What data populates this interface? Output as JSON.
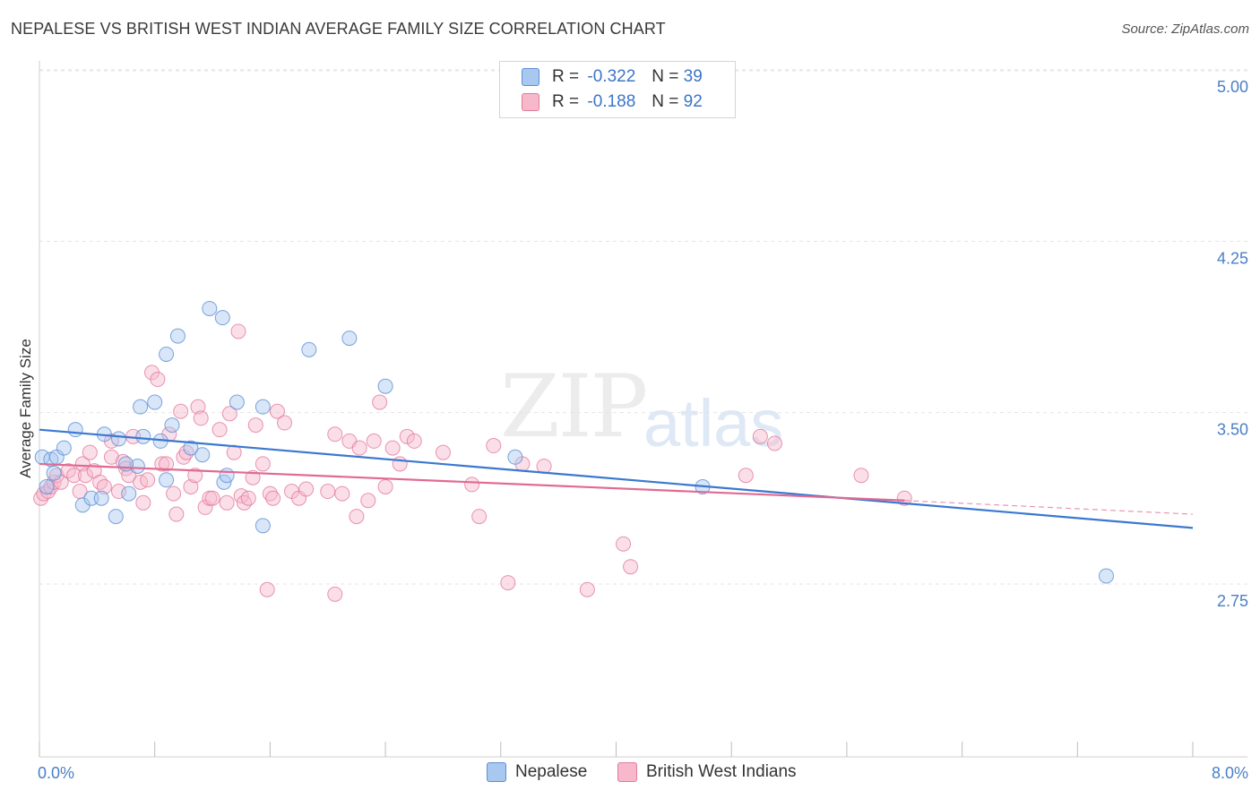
{
  "title": "NEPALESE VS BRITISH WEST INDIAN AVERAGE FAMILY SIZE CORRELATION CHART",
  "source": "Source: ZipAtlas.com",
  "watermark": {
    "zip": "ZIP",
    "atlas": "atlas"
  },
  "legend": {
    "rows": [
      {
        "r_label": "R =",
        "r_value": "-0.322",
        "n_label": "N =",
        "n_value": "39",
        "color": "#a9c8f0"
      },
      {
        "r_label": "R =",
        "r_value": "-0.188",
        "n_label": "N =",
        "n_value": "92",
        "color": "#f7b8cb"
      }
    ]
  },
  "bottom_legend": [
    {
      "label": "Nepalese",
      "color": "#a9c8f0"
    },
    {
      "label": "British West Indians",
      "color": "#f7b8cb"
    }
  ],
  "chart_data": {
    "type": "scatter",
    "title": "NEPALESE VS BRITISH WEST INDIAN AVERAGE FAMILY SIZE CORRELATION CHART",
    "xlabel": "",
    "ylabel": "Average Family Size",
    "xlim": [
      0,
      8
    ],
    "ylim": [
      2,
      5.1
    ],
    "x_tick_labels": [
      "0.0%",
      "8.0%"
    ],
    "y_ticks": [
      2.75,
      3.5,
      4.25,
      5.0
    ],
    "y_tick_labels": [
      "2.75",
      "3.50",
      "4.25",
      "5.00"
    ],
    "series": [
      {
        "name": "Nepalese",
        "color": "#5b8fd6",
        "fill": "#a9c8f0",
        "trend": {
          "x": [
            0,
            8
          ],
          "y": [
            3.5,
            3.07
          ],
          "color": "#3b78d0"
        },
        "points": [
          [
            0.02,
            3.38
          ],
          [
            0.05,
            3.25
          ],
          [
            0.08,
            3.37
          ],
          [
            0.1,
            3.31
          ],
          [
            0.12,
            3.38
          ],
          [
            0.17,
            3.42
          ],
          [
            0.25,
            3.5
          ],
          [
            0.3,
            3.17
          ],
          [
            0.36,
            3.2
          ],
          [
            0.43,
            3.2
          ],
          [
            0.45,
            3.48
          ],
          [
            0.53,
            3.12
          ],
          [
            0.62,
            3.22
          ],
          [
            0.68,
            3.34
          ],
          [
            0.72,
            3.47
          ],
          [
            0.55,
            3.46
          ],
          [
            0.6,
            3.35
          ],
          [
            0.7,
            3.6
          ],
          [
            0.8,
            3.62
          ],
          [
            0.84,
            3.45
          ],
          [
            0.92,
            3.52
          ],
          [
            0.88,
            3.28
          ],
          [
            0.88,
            3.83
          ],
          [
            0.96,
            3.91
          ],
          [
            1.05,
            3.42
          ],
          [
            1.13,
            3.39
          ],
          [
            1.18,
            4.03
          ],
          [
            1.27,
            3.99
          ],
          [
            1.28,
            3.27
          ],
          [
            1.3,
            3.3
          ],
          [
            1.37,
            3.62
          ],
          [
            1.55,
            3.6
          ],
          [
            1.55,
            3.08
          ],
          [
            1.87,
            3.85
          ],
          [
            2.15,
            3.9
          ],
          [
            2.4,
            3.69
          ],
          [
            3.3,
            3.38
          ],
          [
            4.6,
            3.25
          ],
          [
            7.4,
            2.86
          ]
        ]
      },
      {
        "name": "British West Indians",
        "color": "#e27a9c",
        "fill": "#f7b8cb",
        "trend": {
          "x": [
            0,
            6
          ],
          "y": [
            3.35,
            3.19
          ],
          "color": "#e06a92"
        },
        "trend_dashed": {
          "x": [
            6,
            8
          ],
          "y": [
            3.19,
            3.13
          ]
        },
        "points": [
          [
            0.01,
            3.2
          ],
          [
            0.03,
            3.22
          ],
          [
            0.06,
            3.23
          ],
          [
            0.08,
            3.25
          ],
          [
            0.1,
            3.27
          ],
          [
            0.12,
            3.3
          ],
          [
            0.15,
            3.27
          ],
          [
            0.2,
            3.32
          ],
          [
            0.24,
            3.3
          ],
          [
            0.28,
            3.23
          ],
          [
            0.3,
            3.35
          ],
          [
            0.32,
            3.3
          ],
          [
            0.35,
            3.4
          ],
          [
            0.38,
            3.32
          ],
          [
            0.42,
            3.27
          ],
          [
            0.45,
            3.25
          ],
          [
            0.5,
            3.45
          ],
          [
            0.5,
            3.38
          ],
          [
            0.55,
            3.23
          ],
          [
            0.58,
            3.36
          ],
          [
            0.6,
            3.33
          ],
          [
            0.62,
            3.3
          ],
          [
            0.65,
            3.47
          ],
          [
            0.7,
            3.27
          ],
          [
            0.72,
            3.18
          ],
          [
            0.75,
            3.28
          ],
          [
            0.78,
            3.75
          ],
          [
            0.82,
            3.72
          ],
          [
            0.85,
            3.35
          ],
          [
            0.88,
            3.35
          ],
          [
            0.9,
            3.48
          ],
          [
            0.93,
            3.22
          ],
          [
            0.95,
            3.13
          ],
          [
            0.98,
            3.58
          ],
          [
            1.0,
            3.38
          ],
          [
            1.02,
            3.4
          ],
          [
            1.05,
            3.25
          ],
          [
            1.08,
            3.3
          ],
          [
            1.1,
            3.6
          ],
          [
            1.12,
            3.55
          ],
          [
            1.15,
            3.16
          ],
          [
            1.18,
            3.2
          ],
          [
            1.2,
            3.2
          ],
          [
            1.25,
            3.5
          ],
          [
            1.3,
            3.18
          ],
          [
            1.32,
            3.57
          ],
          [
            1.35,
            3.4
          ],
          [
            1.38,
            3.93
          ],
          [
            1.4,
            3.21
          ],
          [
            1.42,
            3.18
          ],
          [
            1.45,
            3.2
          ],
          [
            1.48,
            3.29
          ],
          [
            1.5,
            3.52
          ],
          [
            1.55,
            3.35
          ],
          [
            1.6,
            3.22
          ],
          [
            1.62,
            3.2
          ],
          [
            1.65,
            3.58
          ],
          [
            1.7,
            3.53
          ],
          [
            1.75,
            3.23
          ],
          [
            1.8,
            3.2
          ],
          [
            1.85,
            3.24
          ],
          [
            2.0,
            3.23
          ],
          [
            2.05,
            3.48
          ],
          [
            2.1,
            3.22
          ],
          [
            2.15,
            3.45
          ],
          [
            2.2,
            3.12
          ],
          [
            2.22,
            3.42
          ],
          [
            2.28,
            3.19
          ],
          [
            2.32,
            3.45
          ],
          [
            2.36,
            3.62
          ],
          [
            2.4,
            3.25
          ],
          [
            2.45,
            3.42
          ],
          [
            2.5,
            3.35
          ],
          [
            2.55,
            3.47
          ],
          [
            2.6,
            3.45
          ],
          [
            2.8,
            3.4
          ],
          [
            3.0,
            3.26
          ],
          [
            3.05,
            3.12
          ],
          [
            3.15,
            3.43
          ],
          [
            3.25,
            2.83
          ],
          [
            3.35,
            3.35
          ],
          [
            3.5,
            3.34
          ],
          [
            3.8,
            2.8
          ],
          [
            4.05,
            3.0
          ],
          [
            4.1,
            2.9
          ],
          [
            4.9,
            3.3
          ],
          [
            5.0,
            3.47
          ],
          [
            5.1,
            3.44
          ],
          [
            5.7,
            3.3
          ],
          [
            6.0,
            3.2
          ],
          [
            2.05,
            2.78
          ],
          [
            1.58,
            2.8
          ]
        ]
      }
    ]
  }
}
